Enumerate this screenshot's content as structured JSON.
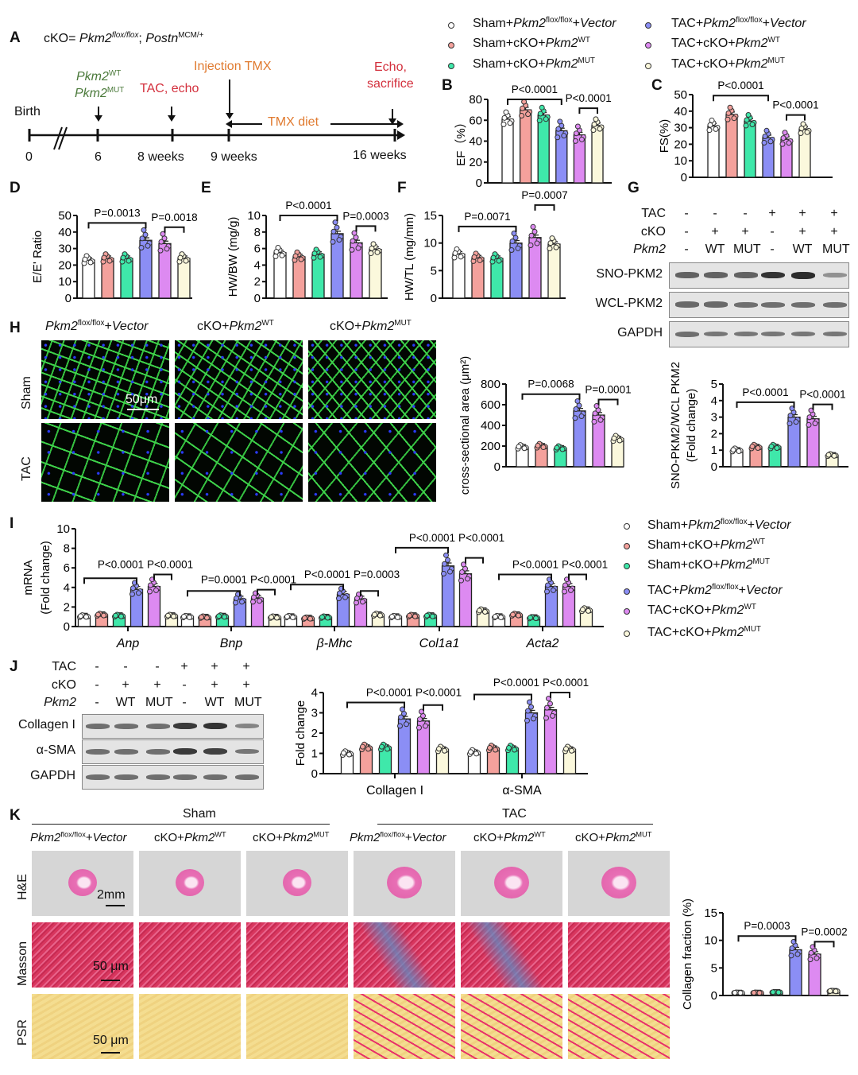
{
  "colors": {
    "group_fill": [
      "#ffffff",
      "#f4a19c",
      "#3fe8aa",
      "#8b8ef5",
      "#dd8af1",
      "#fbf8dc"
    ],
    "stroke": "#222222",
    "timeline_green": "#4b7a3b",
    "timeline_red": "#d3303d",
    "timeline_orange": "#e07a2f",
    "histology_green": "#3ed24a",
    "histology_blue": "#2a3cff",
    "he_pink": "#e86fb5",
    "masson_red": "#d8365e",
    "masson_blue": "#5d8cc4",
    "psr_yellow": "#f4dd90",
    "psr_red": "#e8326a"
  },
  "panels": {
    "A": "A",
    "B": "B",
    "C": "C",
    "D": "D",
    "E": "E",
    "F": "F",
    "G": "G",
    "H": "H",
    "I": "I",
    "J": "J",
    "K": "K"
  },
  "legend_groups": [
    [
      {
        "t": "Sham+"
      },
      {
        "t": "Pkm2",
        "i": 1
      },
      {
        "t": "flox/flox",
        "s": 1
      },
      {
        "t": "+"
      },
      {
        "t": "Vector",
        "i": 1
      }
    ],
    [
      {
        "t": "Sham+cKO+"
      },
      {
        "t": "Pkm2",
        "i": 1
      },
      {
        "t": "WT",
        "s": 1
      }
    ],
    [
      {
        "t": "Sham+cKO+"
      },
      {
        "t": "Pkm2",
        "i": 1
      },
      {
        "t": "MUT",
        "s": 1
      }
    ],
    [
      {
        "t": "TAC+"
      },
      {
        "t": "Pkm2",
        "i": 1
      },
      {
        "t": "flox/flox",
        "s": 1
      },
      {
        "t": "+"
      },
      {
        "t": "Vector",
        "i": 1
      }
    ],
    [
      {
        "t": "TAC+cKO+"
      },
      {
        "t": "Pkm2",
        "i": 1
      },
      {
        "t": "WT",
        "s": 1
      }
    ],
    [
      {
        "t": "TAC+cKO+"
      },
      {
        "t": "Pkm2",
        "i": 1
      },
      {
        "t": "MUT",
        "s": 1
      }
    ]
  ],
  "timeline": {
    "cko_def": [
      {
        "t": "cKO= "
      },
      {
        "t": "Pkm2",
        "i": 1
      },
      {
        "t": "flox/flox",
        "i": 1,
        "s": 1
      },
      {
        "t": "; "
      },
      {
        "t": "Postn",
        "i": 1
      },
      {
        "t": "MCM/+",
        "s": 1
      }
    ],
    "birth": "Birth",
    "pkm2_wt": [
      {
        "t": "Pkm2",
        "i": 1
      },
      {
        "t": "WT",
        "s": 1
      }
    ],
    "pkm2_mut": [
      {
        "t": "Pkm2",
        "i": 1
      },
      {
        "t": "MUT",
        "s": 1
      }
    ],
    "tac_echo": "TAC, echo",
    "injection": "Injection TMX",
    "echo": "Echo,",
    "sacrifice": "sacrifice",
    "tmx_diet": "TMX diet",
    "ticks": [
      "0",
      "6",
      "8 weeks",
      "9 weeks",
      "16 weeks"
    ]
  },
  "blot_g": {
    "rows": [
      "TAC",
      "cKO",
      "Pkm2"
    ],
    "lanes": [
      [
        "-",
        "-",
        "-"
      ],
      [
        "-",
        "+",
        "WT"
      ],
      [
        "-",
        "+",
        "MUT"
      ],
      [
        "+",
        "-",
        "-"
      ],
      [
        "+",
        "+",
        "WT"
      ],
      [
        "+",
        "+",
        "MUT"
      ]
    ],
    "bands": [
      {
        "label": "SNO-PKM2",
        "intensity": [
          0.6,
          0.6,
          0.6,
          0.95,
          1.0,
          0.25
        ]
      },
      {
        "label": "WCL-PKM2",
        "intensity": [
          0.55,
          0.55,
          0.5,
          0.5,
          0.5,
          0.5
        ]
      },
      {
        "label": "GAPDH",
        "intensity": [
          0.5,
          0.45,
          0.45,
          0.45,
          0.45,
          0.45
        ]
      }
    ]
  },
  "blot_j": {
    "rows": [
      "TAC",
      "cKO",
      "Pkm2"
    ],
    "lanes": [
      [
        "-",
        "-",
        "-"
      ],
      [
        "-",
        "+",
        "WT"
      ],
      [
        "-",
        "+",
        "MUT"
      ],
      [
        "+",
        "-",
        "-"
      ],
      [
        "+",
        "+",
        "WT"
      ],
      [
        "+",
        "+",
        "MUT"
      ]
    ],
    "bands": [
      {
        "label": "Collagen I",
        "intensity": [
          0.5,
          0.5,
          0.5,
          0.9,
          0.95,
          0.35
        ]
      },
      {
        "label": "α-SMA",
        "intensity": [
          0.5,
          0.5,
          0.5,
          0.9,
          0.85,
          0.45
        ]
      },
      {
        "label": "GAPDH",
        "intensity": [
          0.5,
          0.5,
          0.5,
          0.5,
          0.5,
          0.5
        ]
      }
    ]
  },
  "histology_h": {
    "columns": [
      [
        {
          "t": "Pkm2",
          "i": 1
        },
        {
          "t": "flox/flox",
          "s": 1
        },
        {
          "t": "+"
        },
        {
          "t": "Vector",
          "i": 1
        }
      ],
      [
        {
          "t": "cKO+"
        },
        {
          "t": "Pkm2",
          "i": 1
        },
        {
          "t": "WT",
          "s": 1
        }
      ],
      [
        {
          "t": "cKO+"
        },
        {
          "t": "Pkm2",
          "i": 1
        },
        {
          "t": "MUT",
          "s": 1
        }
      ]
    ],
    "rows": [
      "Sham",
      "TAC"
    ],
    "scale": "50μm"
  },
  "histology_k": {
    "groups": [
      "Sham",
      "TAC"
    ],
    "columns": [
      [
        {
          "t": "Pkm2",
          "i": 1
        },
        {
          "t": "flox/flox",
          "s": 1
        },
        {
          "t": "+"
        },
        {
          "t": "Vector",
          "i": 1
        }
      ],
      [
        {
          "t": "cKO+"
        },
        {
          "t": "Pkm2",
          "i": 1
        },
        {
          "t": "WT",
          "s": 1
        }
      ],
      [
        {
          "t": "cKO+"
        },
        {
          "t": "Pkm2",
          "i": 1
        },
        {
          "t": "MUT",
          "s": 1
        }
      ],
      [
        {
          "t": "Pkm2",
          "i": 1
        },
        {
          "t": "flox/flox",
          "s": 1
        },
        {
          "t": "+"
        },
        {
          "t": "Vector",
          "i": 1
        }
      ],
      [
        {
          "t": "cKO+"
        },
        {
          "t": "Pkm2",
          "i": 1
        },
        {
          "t": "WT",
          "s": 1
        }
      ],
      [
        {
          "t": "cKO+"
        },
        {
          "t": "Pkm2",
          "i": 1
        },
        {
          "t": "MUT",
          "s": 1
        }
      ]
    ],
    "rows": [
      "H&E",
      "Masson",
      "PSR"
    ],
    "scales": [
      "2mm",
      "50 μm",
      "50 μm"
    ]
  },
  "chart_data": [
    {
      "id": "B",
      "type": "bar",
      "ylabel": "EF（%）",
      "ylim": [
        0,
        80
      ],
      "yticks": [
        0,
        20,
        40,
        60,
        80
      ],
      "values": [
        61,
        70,
        65,
        50,
        46,
        55
      ],
      "brackets": [
        {
          "from": 0,
          "to": 3,
          "label": "P<0.0001"
        },
        {
          "from": 4,
          "to": 5,
          "label": "P<0.0001"
        }
      ]
    },
    {
      "id": "C",
      "type": "bar",
      "ylabel": "FS(%)",
      "ylim": [
        0,
        50
      ],
      "yticks": [
        0,
        10,
        20,
        30,
        40,
        50
      ],
      "values": [
        31,
        38,
        34,
        24,
        23,
        29
      ],
      "brackets": [
        {
          "from": 0,
          "to": 3,
          "label": "P<0.0001"
        },
        {
          "from": 4,
          "to": 5,
          "label": "P<0.0001"
        }
      ]
    },
    {
      "id": "D",
      "type": "bar",
      "ylabel": "E/E' Ratio",
      "ylim": [
        0,
        50
      ],
      "yticks": [
        0,
        10,
        20,
        30,
        40,
        50
      ],
      "values": [
        23,
        24,
        24,
        35,
        33,
        24
      ],
      "brackets": [
        {
          "from": 0,
          "to": 3,
          "label": "P=0.0013"
        },
        {
          "from": 4,
          "to": 5,
          "label": "P=0.0018"
        }
      ]
    },
    {
      "id": "E",
      "type": "bar",
      "ylabel": "HW/BW (mg/g)",
      "ylim": [
        0,
        10
      ],
      "yticks": [
        0,
        2,
        4,
        6,
        8,
        10
      ],
      "values": [
        5.5,
        5.0,
        5.3,
        7.8,
        6.7,
        5.9
      ],
      "brackets": [
        {
          "from": 0,
          "to": 3,
          "label": "P<0.0001"
        },
        {
          "from": 4,
          "to": 5,
          "label": "P=0.0003"
        }
      ]
    },
    {
      "id": "F",
      "type": "bar",
      "ylabel": "HW/TL (mg/mm)",
      "ylim": [
        0,
        15
      ],
      "yticks": [
        0,
        5,
        10,
        15
      ],
      "values": [
        8.0,
        7.3,
        7.2,
        10.0,
        11.0,
        9.8
      ],
      "brackets": [
        {
          "from": 0,
          "to": 3,
          "label": "P=0.0071"
        },
        {
          "from": 4,
          "to": 5,
          "label": "P=0.0007"
        }
      ]
    },
    {
      "id": "H",
      "type": "bar",
      "ylabel": "cross-sectional area (μm²)",
      "ylim": [
        0,
        800
      ],
      "yticks": [
        0,
        200,
        400,
        600,
        800
      ],
      "values": [
        190,
        200,
        180,
        540,
        500,
        270
      ],
      "brackets": [
        {
          "from": 0,
          "to": 3,
          "label": "P=0.0068"
        },
        {
          "from": 4,
          "to": 5,
          "label": "P=0.0001"
        }
      ]
    },
    {
      "id": "G",
      "type": "bar",
      "ylabel": "SNO-PKM2/WCL PKM2",
      "ylabel2": "(Fold change)",
      "ylim": [
        0,
        5
      ],
      "yticks": [
        0,
        1,
        2,
        3,
        4,
        5
      ],
      "values": [
        1.0,
        1.2,
        1.2,
        3.0,
        2.9,
        0.7
      ],
      "brackets": [
        {
          "from": 0,
          "to": 3,
          "label": "P<0.0001"
        },
        {
          "from": 4,
          "to": 5,
          "label": "P<0.0001"
        }
      ]
    },
    {
      "id": "I",
      "type": "bar",
      "ylabel": "mRNA",
      "ylabel2": "(Fold change)",
      "ylim": [
        0,
        10
      ],
      "yticks": [
        0,
        2,
        4,
        6,
        8,
        10
      ],
      "categories": [
        "Anp",
        "Bnp",
        "β-Mhc",
        "Col1a1",
        "Acta2"
      ],
      "series_values": [
        [
          1.05,
          1.2,
          1.1,
          3.8,
          4.1,
          1.1
        ],
        [
          1.0,
          0.95,
          1.05,
          2.8,
          2.9,
          0.95
        ],
        [
          1.0,
          0.85,
          0.95,
          3.3,
          2.8,
          1.2
        ],
        [
          1.0,
          1.1,
          1.1,
          6.2,
          5.4,
          1.6
        ],
        [
          1.0,
          1.2,
          0.9,
          4.1,
          4.1,
          1.7
        ]
      ],
      "brackets": [
        {
          "g": 0,
          "from": 0,
          "to": 3,
          "label": "P<0.0001"
        },
        {
          "g": 0,
          "from": 4,
          "to": 5,
          "label": "P<0.0001"
        },
        {
          "g": 1,
          "from": 0,
          "to": 3,
          "label": "P=0.0001"
        },
        {
          "g": 1,
          "from": 4,
          "to": 5,
          "label": "P<0.0001"
        },
        {
          "g": 2,
          "from": 0,
          "to": 3,
          "label": "P<0.0001"
        },
        {
          "g": 2,
          "from": 4,
          "to": 5,
          "label": "P=0.0003"
        },
        {
          "g": 3,
          "from": 0,
          "to": 3,
          "label": "P<0.0001"
        },
        {
          "g": 3,
          "from": 4,
          "to": 5,
          "label": "P<0.0001"
        },
        {
          "g": 4,
          "from": 0,
          "to": 3,
          "label": "P<0.0001"
        },
        {
          "g": 4,
          "from": 4,
          "to": 5,
          "label": "P<0.0001"
        }
      ]
    },
    {
      "id": "J",
      "type": "bar",
      "ylabel": "Fold change",
      "ylim": [
        0,
        4
      ],
      "yticks": [
        0,
        1,
        2,
        3,
        4
      ],
      "categories": [
        "Collagen I",
        "α-SMA"
      ],
      "series_values": [
        [
          1.0,
          1.3,
          1.3,
          2.7,
          2.6,
          1.2
        ],
        [
          1.05,
          1.25,
          1.25,
          3.0,
          3.15,
          1.2
        ]
      ],
      "brackets": [
        {
          "g": 0,
          "from": 0,
          "to": 3,
          "label": "P<0.0001"
        },
        {
          "g": 0,
          "from": 4,
          "to": 5,
          "label": "P<0.0001"
        },
        {
          "g": 1,
          "from": 0,
          "to": 3,
          "label": "P<0.0001"
        },
        {
          "g": 1,
          "from": 4,
          "to": 5,
          "label": "P<0.0001"
        }
      ]
    },
    {
      "id": "K",
      "type": "bar",
      "ylabel": "Collagen fraction (%)",
      "ylim": [
        0,
        15
      ],
      "yticks": [
        0,
        5,
        10,
        15
      ],
      "values": [
        0.5,
        0.5,
        0.6,
        8.3,
        7.5,
        0.8
      ],
      "brackets": [
        {
          "from": 0,
          "to": 3,
          "label": "P=0.0003"
        },
        {
          "from": 4,
          "to": 5,
          "label": "P=0.0002"
        }
      ]
    }
  ]
}
